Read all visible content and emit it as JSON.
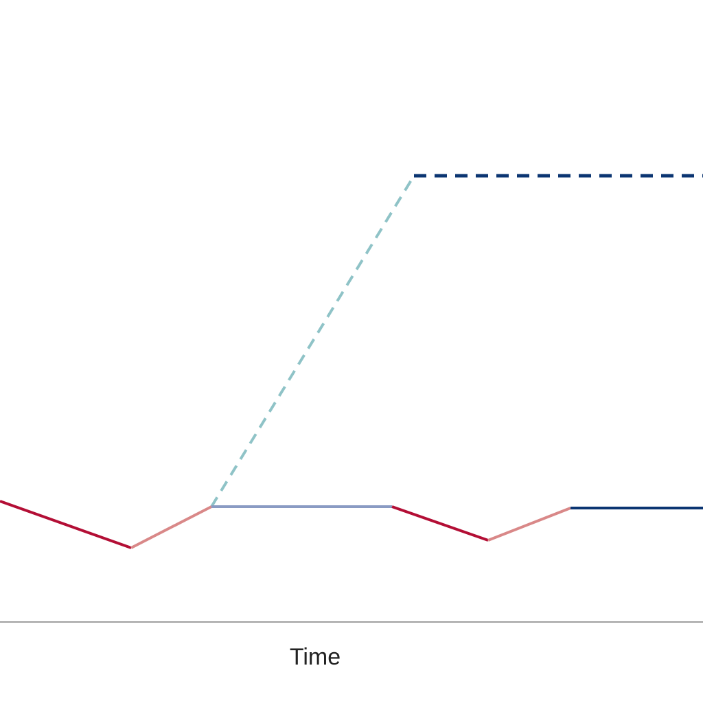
{
  "axis": {
    "x_label": "Time"
  }
}
